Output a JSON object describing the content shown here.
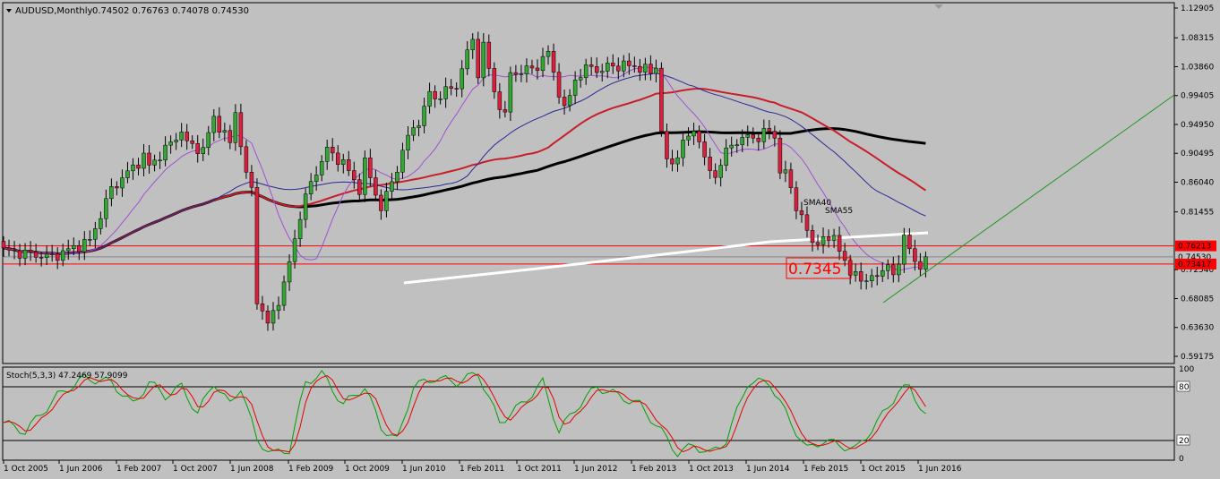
{
  "header": {
    "symbol": "AUDUSD,Monthly",
    "ohlc": "0.74502 0.76763 0.74078 0.74530"
  },
  "price_axis": {
    "labels": [
      "1.12905",
      "1.08315",
      "1.03860",
      "0.99405",
      "0.94950",
      "0.90495",
      "0.86040",
      "0.81455",
      "0.76213",
      "0.74530",
      "0.73417",
      "0.72540",
      "0.68085",
      "0.63630",
      "0.59175"
    ]
  },
  "price_tags": {
    "current": "0.74530",
    "red_upper": "0.76213",
    "red_lower": "0.73417"
  },
  "annotations": {
    "sma40": "SMA40",
    "sma55": "SMA55",
    "level_box": "0.7345"
  },
  "stoch": {
    "label": "Stoch(5,3,3) 47.2469 57.9099",
    "axis_labels": [
      "100",
      "80",
      "20",
      "0"
    ]
  },
  "time_axis": {
    "labels": [
      "1 Oct 2005",
      "1 Jun 2006",
      "1 Feb 2007",
      "1 Oct 2007",
      "1 Jun 2008",
      "1 Feb 2009",
      "1 Oct 2009",
      "1 Jun 2010",
      "1 Feb 2011",
      "1 Oct 2011",
      "1 Jun 2012",
      "1 Feb 2013",
      "1 Oct 2013",
      "1 Jun 2014",
      "1 Feb 2015",
      "1 Oct 2015",
      "1 Jun 2016"
    ]
  },
  "colors": {
    "background": "#c0c0c0",
    "bull": "#32a832",
    "bear": "#dc1e3c",
    "sma_black": "#000000",
    "sma_red": "#c81e28",
    "sma_navy": "#282896",
    "sma_violet": "#a050d2",
    "sma_white": "#ffffff",
    "level_line": "#ff0000",
    "trendline": "#1e961e",
    "stoch_main": "#00a000",
    "stoch_signal": "#e60000"
  },
  "chart_data": {
    "type": "candlestick",
    "symbol": "AUDUSD",
    "timeframe": "Monthly",
    "y_range": [
      0.59175,
      1.12905
    ],
    "x_range": [
      "2005-09",
      "2016-06"
    ],
    "horizontal_levels": [
      0.76213,
      0.73417,
      0.7453
    ],
    "last_candle": {
      "open": 0.74502,
      "high": 0.76763,
      "low": 0.74078,
      "close": 0.7453
    },
    "key_points": [
      {
        "date": "2005-10",
        "close": 0.75
      },
      {
        "date": "2008-07",
        "close": 0.98
      },
      {
        "date": "2008-10",
        "close": 0.66
      },
      {
        "date": "2011-07",
        "close": 1.07
      },
      {
        "date": "2013-05",
        "close": 0.96
      },
      {
        "date": "2015-09",
        "close": 0.7
      },
      {
        "date": "2016-06",
        "close": 0.7453
      }
    ],
    "moving_averages": [
      "SMA40",
      "SMA55"
    ],
    "stochastic": {
      "params": "5,3,3",
      "main": 47.2469,
      "signal": 57.9099,
      "levels": [
        80,
        20
      ]
    }
  }
}
